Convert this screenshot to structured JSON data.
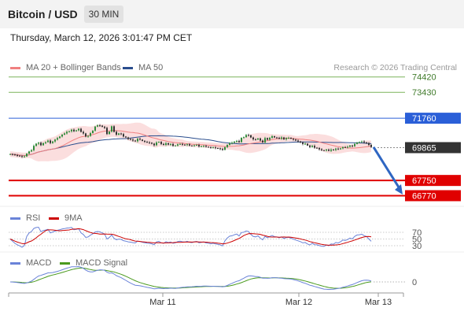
{
  "header": {
    "pair": "Bitcoin / USD",
    "timeframe": "30 MIN"
  },
  "datetime": "Thursday, March 12, 2026 3:01:47 PM CET",
  "credit": "Research © 2026 Trading Central",
  "legends": {
    "ma20": "MA 20 + Bollinger Bands",
    "ma50": "MA 50",
    "rsi": "RSI",
    "rsi_ma": "9MA",
    "macd": "MACD",
    "macd_signal": "MACD Signal"
  },
  "colors": {
    "ma20": "#f08080",
    "ma50": "#2b4e8e",
    "bands_fill": "#fbdede",
    "candle_up": "#2e8b3a",
    "candle_down": "#333333",
    "support": "#e00000",
    "resistance": "#2a5fd8",
    "target": "#7cb45a",
    "current_price_bg": "#333333",
    "rsi": "#6a83d8",
    "rsi_ma": "#cc0000",
    "macd": "#6a83d8",
    "macd_signal": "#4a9a1e"
  },
  "chart_data": [
    {
      "type": "candlestick",
      "panel": "price",
      "x_ticks": [
        "Mar 11",
        "Mar 12",
        "Mar 13"
      ],
      "ylim": [
        66500,
        74800
      ],
      "levels": [
        {
          "label": "74420",
          "value": 74420,
          "kind": "target"
        },
        {
          "label": "73430",
          "value": 73430,
          "kind": "target"
        },
        {
          "label": "71760",
          "value": 71760,
          "kind": "resistance"
        },
        {
          "label": "69865",
          "value": 69865,
          "kind": "current"
        },
        {
          "label": "67750",
          "value": 67750,
          "kind": "support"
        },
        {
          "label": "66770",
          "value": 66770,
          "kind": "support"
        }
      ],
      "series": [
        {
          "name": "Price",
          "values": [
            69450,
            69420,
            69380,
            69350,
            69320,
            69280,
            69300,
            69480,
            69620,
            69700,
            69980,
            70120,
            70180,
            70020,
            70160,
            70220,
            70320,
            70160,
            70260,
            70380,
            70480,
            70580,
            70700,
            70780,
            70880,
            70920,
            71020,
            70920,
            70980,
            71080,
            70880,
            70780,
            70580,
            70620,
            70800,
            70960,
            71220,
            71300,
            71280,
            71210,
            71140,
            70740,
            70900,
            71240,
            70880,
            70700,
            70780,
            70740,
            70580,
            70520,
            70420,
            70380,
            70320,
            70280,
            70440,
            70380,
            70300,
            70240,
            70200,
            70180,
            70120,
            70020,
            70200,
            70240,
            70100,
            70040,
            70150,
            70060,
            70100,
            69980,
            70000,
            70080,
            70100,
            70060,
            70040,
            70080,
            70000,
            69980,
            70020,
            70040,
            69940,
            69960,
            69980,
            69920,
            69900,
            69860,
            69880,
            69840,
            69820,
            69780,
            69720,
            69900,
            70040,
            70150,
            70180,
            70250,
            70300,
            70220,
            70500,
            70540,
            70680,
            70660,
            70520,
            70400,
            70380,
            70460,
            70320,
            70200,
            70480,
            70380,
            70500,
            70600,
            70520,
            70500,
            70440,
            70520,
            70400,
            70480,
            70500,
            70440,
            70380,
            70320,
            70260,
            70200,
            70100,
            70120,
            70000,
            69900,
            69980,
            69860,
            69840,
            69760,
            69700,
            69680,
            69740,
            69660,
            69740,
            69720,
            69800,
            69760,
            69820,
            69900,
            69880,
            69920,
            70000,
            69960,
            70100,
            70200,
            70220,
            70260,
            70200,
            70160,
            70040,
            69900
          ]
        },
        {
          "name": "MA 20"
        },
        {
          "name": "MA 50"
        }
      ]
    },
    {
      "type": "line",
      "panel": "rsi",
      "y_ticks": [
        70,
        50,
        30
      ],
      "ylim": [
        20,
        80
      ],
      "series": [
        {
          "name": "RSI"
        },
        {
          "name": "9MA"
        }
      ]
    },
    {
      "type": "line",
      "panel": "macd",
      "y_ticks": [
        0
      ],
      "ylim": [
        -140,
        150
      ],
      "series": [
        {
          "name": "MACD"
        },
        {
          "name": "MACD Signal"
        }
      ]
    }
  ]
}
